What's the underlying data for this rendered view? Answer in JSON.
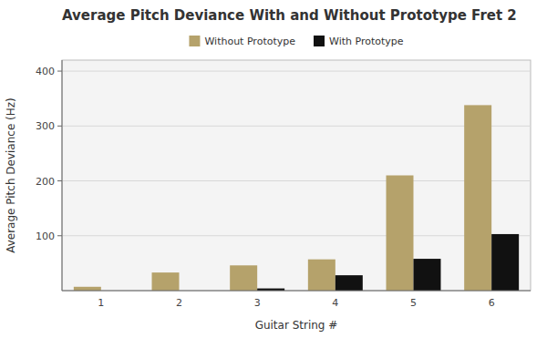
{
  "chart_data": {
    "type": "bar",
    "title": "Average Pitch Deviance With and Without Prototype Fret 2",
    "xlabel": "Guitar String #",
    "ylabel": "Average Pitch Deviance (Hz)",
    "categories": [
      1,
      2,
      3,
      4,
      5,
      6
    ],
    "series": [
      {
        "name": "Without Prototype",
        "color": "#b5a26b",
        "values": [
          7,
          33,
          46,
          57,
          210,
          338
        ]
      },
      {
        "name": "With Prototype",
        "color": "#111111",
        "values": [
          0,
          0,
          4,
          28,
          58,
          103
        ]
      }
    ],
    "ylim": [
      0,
      420
    ],
    "yticks": [
      100,
      200,
      300,
      400
    ],
    "grid": true,
    "legend": "top"
  }
}
